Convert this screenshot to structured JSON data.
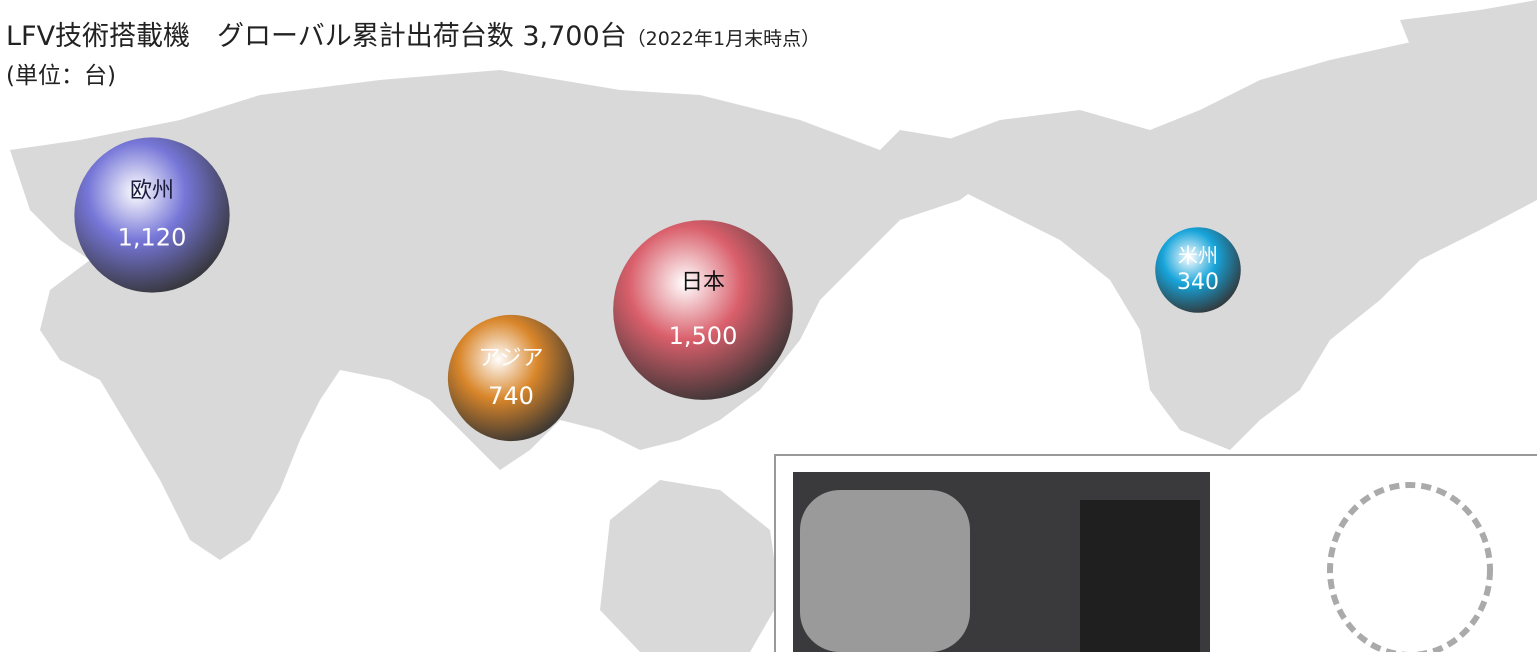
{
  "header": {
    "title": "LFV技術搭載機　グローバル累計出荷台数 3,700台",
    "date_note": "（2022年1月末時点）",
    "unit": "(単位：台)"
  },
  "regions": [
    {
      "name": "欧州",
      "value": 1120,
      "value_label": "1,120",
      "color": "#7676d8"
    },
    {
      "name": "アジア",
      "value": 740,
      "value_label": "740",
      "color": "#d9862a"
    },
    {
      "name": "日本",
      "value": 1500,
      "value_label": "1,500",
      "color": "#d95f6b"
    },
    {
      "name": "米州",
      "value": 340,
      "value_label": "340",
      "color": "#17a4da"
    }
  ]
}
